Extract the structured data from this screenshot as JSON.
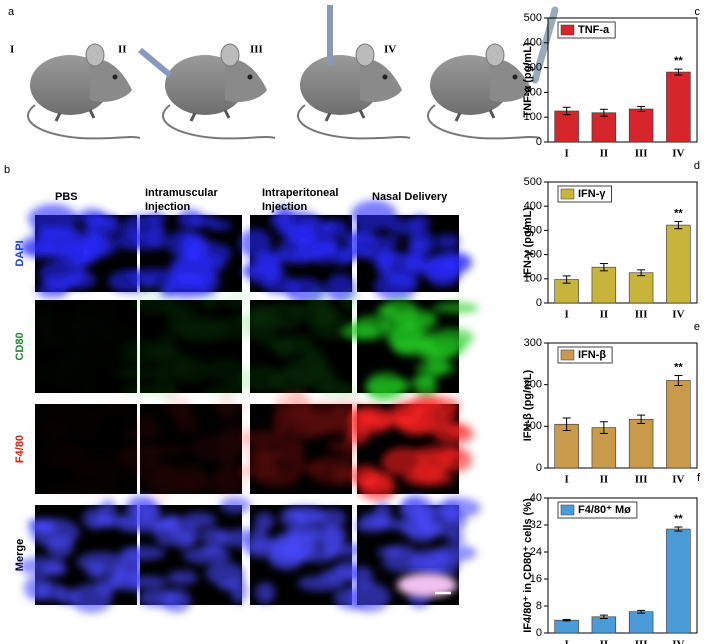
{
  "panels": [
    "a",
    "b",
    "c",
    "d",
    "e",
    "f"
  ],
  "panel_a": {
    "labels": [
      "I",
      "II",
      "III",
      "IV"
    ]
  },
  "panel_b": {
    "columns": [
      "PBS",
      "Intramuscular Injection",
      "Intraperitoneal Injection",
      "Nasal Delivery"
    ],
    "rows": [
      "DAPI",
      "CD80",
      "F4/80",
      "Merge"
    ]
  },
  "chart_data": [
    {
      "type": "bar",
      "ylabel": "TNF-α (pg/mL)",
      "categories": [
        "I",
        "II",
        "III",
        "IV"
      ],
      "series": [
        {
          "name": "TNF-a",
          "color": "#d7262b",
          "values": [
            125,
            118,
            133,
            282
          ],
          "errors": [
            15,
            14,
            10,
            12
          ]
        }
      ],
      "ylim": [
        0,
        500
      ],
      "yticks": [
        0,
        100,
        200,
        300,
        400,
        500
      ],
      "annotation": "**"
    },
    {
      "type": "bar",
      "ylabel": "IFN-γ (pg/mL)",
      "categories": [
        "I",
        "II",
        "III",
        "IV"
      ],
      "series": [
        {
          "name": "IFN-γ",
          "color": "#c7b43a",
          "values": [
            97,
            148,
            125,
            322
          ],
          "errors": [
            15,
            15,
            12,
            15
          ]
        }
      ],
      "ylim": [
        0,
        500
      ],
      "yticks": [
        0,
        100,
        200,
        300,
        400,
        500
      ],
      "annotation": "**"
    },
    {
      "type": "bar",
      "ylabel": "IFN-β (pg/mL)",
      "categories": [
        "I",
        "II",
        "III",
        "IV"
      ],
      "series": [
        {
          "name": "IFN-β",
          "color": "#c99a4b",
          "values": [
            105,
            97,
            117,
            210
          ],
          "errors": [
            15,
            14,
            10,
            12
          ]
        }
      ],
      "ylim": [
        0,
        300
      ],
      "yticks": [
        0,
        100,
        200,
        300
      ],
      "annotation": "**"
    },
    {
      "type": "bar",
      "ylabel": "IF4/80⁺ in CD80⁺ cells (%)",
      "categories": [
        "I",
        "II",
        "III",
        "IV"
      ],
      "series": [
        {
          "name": "F4/80⁺ Mø",
          "color": "#4b9bd8",
          "values": [
            3.8,
            4.8,
            6.3,
            30.8
          ],
          "errors": [
            0.2,
            0.5,
            0.4,
            0.6
          ]
        }
      ],
      "ylim": [
        0,
        40
      ],
      "yticks": [
        0,
        8,
        16,
        24,
        32,
        40
      ],
      "annotation": "**"
    }
  ]
}
